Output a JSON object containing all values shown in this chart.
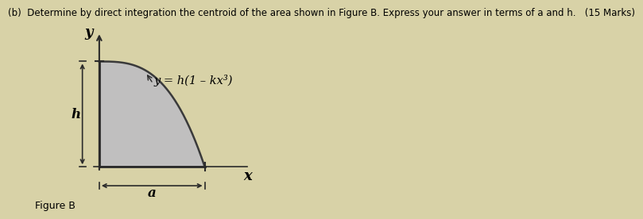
{
  "background_color": "#d8d2a7",
  "box_bg": "#ffffff",
  "title_text": "(b)  Determine by direct integration the centroid of the area shown in Figure B. Express your answer in terms of a and h.   (15 Marks)",
  "title_fontsize": 8.5,
  "caption": "Figure B",
  "shaded_color": "#c0bfbf",
  "curve_color": "#3a3a3a",
  "axis_color": "#2a2a2a",
  "arrow_color": "#2a2a2a",
  "label_y": "y",
  "label_x": "x",
  "label_h": "h",
  "label_a": "a",
  "equation": "y = h(1 – kx³)",
  "fig_width": 7.0,
  "fig_height": 2.67
}
